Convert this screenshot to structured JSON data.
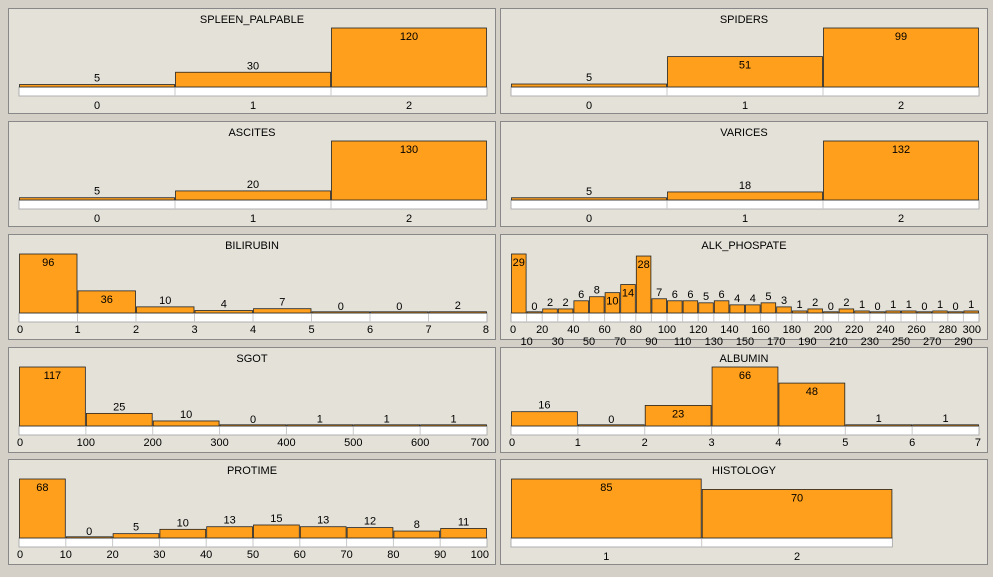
{
  "chart_data": [
    {
      "type": "bar",
      "title": "SPLEEN_PALPABLE",
      "bins": "categorical",
      "categories": [
        "0",
        "1",
        "2"
      ],
      "values": [
        5,
        30,
        120
      ],
      "ymax": 120
    },
    {
      "type": "bar",
      "title": "SPIDERS",
      "bins": "categorical",
      "categories": [
        "0",
        "1",
        "2"
      ],
      "values": [
        5,
        51,
        99
      ],
      "ymax": 99
    },
    {
      "type": "bar",
      "title": "ASCITES",
      "bins": "categorical",
      "categories": [
        "0",
        "1",
        "2"
      ],
      "values": [
        5,
        20,
        130
      ],
      "ymax": 130
    },
    {
      "type": "bar",
      "title": "VARICES",
      "bins": "categorical",
      "categories": [
        "0",
        "1",
        "2"
      ],
      "values": [
        5,
        18,
        132
      ],
      "ymax": 132
    },
    {
      "type": "bar",
      "title": "BILIRUBIN",
      "bins": "edges",
      "edges": [
        0,
        1,
        2,
        3,
        4,
        5,
        6,
        7,
        8
      ],
      "values": [
        96,
        36,
        10,
        4,
        7,
        0,
        0,
        2
      ],
      "ymax": 96
    },
    {
      "type": "bar",
      "title": "ALK_PHOSPATE",
      "bins": "edges",
      "edges": [
        0,
        10,
        20,
        30,
        40,
        50,
        60,
        70,
        80,
        90,
        100,
        110,
        120,
        130,
        140,
        150,
        160,
        170,
        180,
        190,
        200,
        210,
        220,
        230,
        240,
        250,
        260,
        270,
        280,
        290,
        300
      ],
      "values": [
        29,
        0,
        2,
        2,
        6,
        8,
        10,
        14,
        28,
        7,
        6,
        6,
        5,
        6,
        4,
        4,
        5,
        3,
        1,
        2,
        0,
        2,
        1,
        0,
        1,
        1,
        0,
        1,
        0,
        1
      ],
      "ymax": 29
    },
    {
      "type": "bar",
      "title": "SGOT",
      "bins": "edges",
      "edges": [
        0,
        100,
        200,
        300,
        400,
        500,
        600,
        700
      ],
      "values": [
        117,
        25,
        10,
        0,
        1,
        1,
        1
      ],
      "ymax": 117
    },
    {
      "type": "bar",
      "title": "ALBUMIN",
      "bins": "edges",
      "edges": [
        0,
        1,
        2,
        3,
        4,
        5,
        6,
        7
      ],
      "values": [
        16,
        0,
        23,
        66,
        48,
        1,
        1
      ],
      "ymax": 66
    },
    {
      "type": "bar",
      "title": "PROTIME",
      "bins": "edges",
      "edges": [
        0,
        10,
        20,
        30,
        40,
        50,
        60,
        70,
        80,
        90,
        100
      ],
      "values": [
        68,
        0,
        5,
        10,
        13,
        15,
        13,
        12,
        8,
        11
      ],
      "ymax": 68
    },
    {
      "type": "bar",
      "title": "HISTOLOGY",
      "bins": "categorical",
      "categories": [
        "1",
        "2"
      ],
      "values": [
        85,
        70
      ],
      "ymax": 85
    }
  ],
  "colors": {
    "bar": "#ff9f1c",
    "bar_border": "#222222",
    "panel_bg": "#e3e1d8",
    "axis_strip": "#ffffff"
  }
}
